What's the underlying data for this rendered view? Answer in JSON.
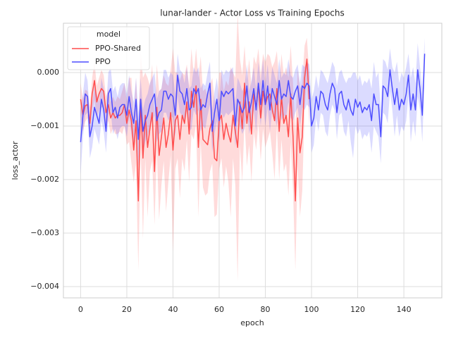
{
  "chart_data": {
    "type": "line",
    "title": "lunar-lander - Actor Loss vs Training Epochs",
    "x_label": "epoch",
    "y_label": "loss_actor",
    "legend_title": "model",
    "legend": "upper left",
    "grid": true,
    "xlim": [
      -7.45,
      156.45
    ],
    "xticks": [
      0,
      20,
      40,
      60,
      80,
      100,
      120,
      140
    ],
    "ylim": [
      -0.00421,
      0.00092
    ],
    "yticks": [
      {
        "value": -0.004,
        "label": "−0.004"
      },
      {
        "value": -0.003,
        "label": "−0.003"
      },
      {
        "value": -0.002,
        "label": "−0.002"
      },
      {
        "value": -0.001,
        "label": "−0.001"
      },
      {
        "value": 0,
        "label": "0.000"
      }
    ],
    "series": [
      {
        "name": "PPO-Shared",
        "color": "#ff4d4d",
        "x": [
          0,
          1,
          2,
          3,
          4,
          5,
          6,
          7,
          8,
          9,
          10,
          11,
          12,
          13,
          14,
          15,
          16,
          17,
          18,
          19,
          20,
          21,
          22,
          23,
          24,
          25,
          26,
          27,
          28,
          29,
          30,
          31,
          32,
          33,
          34,
          35,
          36,
          37,
          38,
          39,
          40,
          41,
          42,
          43,
          44,
          45,
          46,
          47,
          48,
          49,
          50,
          51,
          52,
          53,
          54,
          55,
          56,
          57,
          58,
          59,
          60,
          61,
          62,
          63,
          64,
          65,
          66,
          67,
          68,
          69,
          70,
          71,
          72,
          73,
          74,
          75,
          76,
          77,
          78,
          79,
          80,
          81,
          82,
          83,
          84,
          85,
          86,
          87,
          88,
          89,
          90,
          91,
          92,
          93,
          94,
          95,
          96,
          97,
          98,
          99
        ],
        "values": [
          -0.0005,
          -0.0008,
          -0.00062,
          -0.0006,
          -0.00095,
          -0.0004,
          -0.00015,
          -0.00055,
          -0.0004,
          -0.0003,
          -0.00035,
          -0.00075,
          -0.0006,
          -0.00085,
          -0.00075,
          -0.00085,
          -0.0008,
          -0.0008,
          -0.00075,
          -0.0006,
          -0.00095,
          -0.0007,
          -0.0009,
          -0.00145,
          -0.0009,
          -0.0024,
          -0.0005,
          -0.0016,
          -0.0008,
          -0.0014,
          -0.00105,
          -0.00075,
          -0.00185,
          -0.00065,
          -0.00155,
          -0.0012,
          -0.00085,
          -0.0014,
          -0.00115,
          -0.00075,
          -0.00145,
          -0.0009,
          -0.0008,
          -0.00125,
          -0.0008,
          -0.00095,
          -0.00055,
          -0.00115,
          -0.00035,
          -0.00065,
          -0.00025,
          -0.0014,
          -0.0005,
          -0.00125,
          -0.0013,
          -0.00135,
          -0.00105,
          -0.0009,
          -0.0016,
          -0.00165,
          -0.0009,
          -0.0008,
          -0.00125,
          -0.00095,
          -0.00115,
          -0.0013,
          -0.0008,
          -0.0011,
          -0.0014,
          -0.00055,
          -0.00105,
          -0.0002,
          -0.00095,
          -0.00055,
          -0.00115,
          -0.0004,
          -0.00065,
          -0.00025,
          -0.00085,
          -0.00035,
          -0.0006,
          -0.00045,
          -0.0004,
          -0.0007,
          -0.0009,
          -0.0003,
          -0.0011,
          -0.00045,
          -0.00095,
          -0.0008,
          -0.0012,
          -0.0004,
          -0.0012,
          -0.0024,
          -0.00085,
          -0.0015,
          -0.0012,
          -0.0001,
          0.00025,
          -0.0005
        ],
        "errors": [
          0.0003,
          0.0003,
          0.0003,
          0.00025,
          0.0003,
          0.0003,
          0.00035,
          0.0003,
          0.0003,
          0.00035,
          0.0003,
          0.0003,
          0.0003,
          0.0003,
          0.0003,
          0.0003,
          0.00035,
          0.0003,
          0.0004,
          0.0004,
          0.0004,
          0.0006,
          0.0008,
          0.0006,
          0.0008,
          0.0013,
          0.0009,
          0.0015,
          0.0008,
          0.0013,
          0.0008,
          0.0009,
          0.001,
          0.0008,
          0.0012,
          0.0009,
          0.0008,
          0.0012,
          0.0009,
          0.0008,
          0.0019,
          0.0009,
          0.0008,
          0.0011,
          0.0008,
          0.0009,
          0.0007,
          0.0009,
          0.0008,
          0.0006,
          0.0007,
          0.0013,
          0.0008,
          0.0009,
          0.001,
          0.0009,
          0.0008,
          0.0008,
          0.0011,
          0.001,
          0.0009,
          0.0008,
          0.0009,
          0.0008,
          0.0009,
          0.0014,
          0.0008,
          0.001,
          0.0025,
          0.0008,
          0.001,
          0.0007,
          0.0008,
          0.0008,
          0.0009,
          0.0007,
          0.0008,
          0.0007,
          0.0008,
          0.0007,
          0.0008,
          0.0008,
          0.0007,
          0.0008,
          0.0011,
          0.0007,
          0.0009,
          0.0008,
          0.0009,
          0.0009,
          0.0011,
          0.0009,
          0.001,
          0.0013,
          0.0009,
          0.0012,
          0.001,
          0.0006,
          0.0004,
          0.0005
        ]
      },
      {
        "name": "PPO",
        "color": "#4d4dff",
        "x": [
          0,
          1,
          2,
          3,
          4,
          5,
          6,
          7,
          8,
          9,
          10,
          11,
          12,
          13,
          14,
          15,
          16,
          17,
          18,
          19,
          20,
          21,
          22,
          23,
          24,
          25,
          26,
          27,
          28,
          29,
          30,
          31,
          32,
          33,
          34,
          35,
          36,
          37,
          38,
          39,
          40,
          41,
          42,
          43,
          44,
          45,
          46,
          47,
          48,
          49,
          50,
          51,
          52,
          53,
          54,
          55,
          56,
          57,
          58,
          59,
          60,
          61,
          62,
          63,
          64,
          65,
          66,
          67,
          68,
          69,
          70,
          71,
          72,
          73,
          74,
          75,
          76,
          77,
          78,
          79,
          80,
          81,
          82,
          83,
          84,
          85,
          86,
          87,
          88,
          89,
          90,
          91,
          92,
          93,
          94,
          95,
          96,
          97,
          98,
          99,
          100,
          101,
          102,
          103,
          104,
          105,
          106,
          107,
          108,
          109,
          110,
          111,
          112,
          113,
          114,
          115,
          116,
          117,
          118,
          119,
          120,
          121,
          122,
          123,
          124,
          125,
          126,
          127,
          128,
          129,
          130,
          131,
          132,
          133,
          134,
          135,
          136,
          137,
          138,
          139,
          140,
          141,
          142,
          143,
          144,
          145,
          146,
          147,
          148,
          149
        ],
        "values": [
          -0.0013,
          -0.0008,
          -0.0004,
          -0.00045,
          -0.0012,
          -0.001,
          -0.00065,
          -0.0008,
          -0.00095,
          -0.0005,
          -0.0007,
          -0.0011,
          -0.0004,
          -0.0003,
          -0.00075,
          -0.00065,
          -0.00085,
          -0.00065,
          -0.0006,
          -0.0006,
          -0.0008,
          -0.00045,
          -0.00075,
          -0.00095,
          -0.0005,
          -0.00125,
          -0.0005,
          -0.0011,
          -0.0009,
          -0.0008,
          -0.0006,
          -0.0005,
          -0.0004,
          -0.0009,
          -0.00075,
          -0.0007,
          -0.00035,
          -0.00035,
          -0.0005,
          -0.0004,
          -0.00045,
          -0.0008,
          -5e-05,
          -0.00035,
          -0.0004,
          -0.0006,
          -0.0003,
          -0.0007,
          -0.00065,
          -0.0003,
          -0.0004,
          -0.0003,
          -0.0007,
          -0.0006,
          -0.00065,
          -0.0004,
          -0.0002,
          -0.0011,
          -0.00075,
          -0.0005,
          -0.0009,
          -0.00035,
          -0.00045,
          -0.00035,
          -0.0004,
          -0.00035,
          -0.0003,
          -0.001,
          -0.0005,
          -0.0006,
          -0.00075,
          -0.00065,
          -0.00025,
          -0.00075,
          -0.00055,
          -0.0003,
          -0.0007,
          -0.0002,
          -0.0006,
          -0.00015,
          -0.0006,
          -0.00025,
          -0.0007,
          -0.0003,
          -0.00045,
          -0.0006,
          -0.00015,
          -0.0005,
          -0.0004,
          -0.00045,
          -0.00015,
          -0.00045,
          -0.0005,
          -0.00035,
          -0.00025,
          -0.0006,
          -0.00025,
          -0.0003,
          -0.0002,
          -0.00025,
          -0.001,
          -0.00085,
          -0.00045,
          -0.0007,
          -0.00035,
          -0.0004,
          -0.0006,
          -0.0007,
          -0.0004,
          -0.0002,
          -0.0003,
          -0.00075,
          -0.0004,
          -0.00035,
          -0.0006,
          -0.0007,
          -0.0005,
          -0.0007,
          -0.0008,
          -0.0005,
          -0.00065,
          -0.00055,
          -0.00075,
          -0.00065,
          -0.0007,
          -0.0006,
          -0.0009,
          -0.0004,
          -0.0006,
          -0.0006,
          -0.0012,
          -0.00025,
          -0.0003,
          -0.00045,
          5e-05,
          -0.0003,
          -0.0006,
          -0.0003,
          -0.0007,
          -0.0005,
          -0.0006,
          -0.0004,
          -5e-05,
          -0.0007,
          -0.0004,
          -0.0007,
          5e-05,
          -0.0003,
          -0.0008,
          0.00035
        ],
        "errors": [
          0.0006,
          0.0004,
          0.0004,
          0.0003,
          0.0004,
          0.0004,
          0.0004,
          0.0004,
          0.0004,
          0.0004,
          0.0004,
          0.0004,
          0.0004,
          0.0004,
          0.0004,
          0.0004,
          0.0004,
          0.0004,
          0.0004,
          0.0004,
          0.0004,
          0.0004,
          0.0004,
          0.0004,
          0.0004,
          0.0005,
          0.0004,
          0.0004,
          0.0004,
          0.0004,
          0.0004,
          0.0004,
          0.0004,
          0.0004,
          0.0004,
          0.0004,
          0.0004,
          0.0004,
          0.0004,
          0.0004,
          0.0004,
          0.0004,
          0.0004,
          0.0004,
          0.0004,
          0.0004,
          0.0004,
          0.0004,
          0.0004,
          0.0004,
          0.0004,
          0.0004,
          0.0004,
          0.0004,
          0.0004,
          0.0004,
          0.0004,
          0.0004,
          0.0004,
          0.0004,
          0.0004,
          0.0004,
          0.0004,
          0.0004,
          0.0004,
          0.0004,
          0.0004,
          0.0004,
          0.0004,
          0.0004,
          0.0004,
          0.0004,
          0.0004,
          0.0004,
          0.0004,
          0.0004,
          0.0004,
          0.0004,
          0.0004,
          0.0004,
          0.0004,
          0.0004,
          0.0004,
          0.0004,
          0.0004,
          0.0004,
          0.0004,
          0.0004,
          0.0004,
          0.0004,
          0.0004,
          0.0004,
          0.0004,
          0.0004,
          0.0004,
          0.0004,
          0.0004,
          0.0004,
          0.0004,
          0.0004,
          0.0005,
          0.0005,
          0.0004,
          0.0004,
          0.0004,
          0.0004,
          0.0005,
          0.0005,
          0.0004,
          0.0004,
          0.0004,
          0.0005,
          0.0004,
          0.0004,
          0.0005,
          0.0005,
          0.0004,
          0.0006,
          0.0008,
          0.0005,
          0.0005,
          0.0005,
          0.0005,
          0.0005,
          0.0005,
          0.0005,
          0.0006,
          0.0006,
          0.0005,
          0.0006,
          0.0005,
          0.0005,
          0.0005,
          0.0005,
          0.0004,
          0.0004,
          0.0006,
          0.0005,
          0.0005,
          0.0005,
          0.0005,
          0.0005,
          0.0004,
          0.0006,
          0.0005,
          0.0005,
          0.0005,
          0.0004,
          0.0005,
          0.0003
        ]
      }
    ]
  }
}
